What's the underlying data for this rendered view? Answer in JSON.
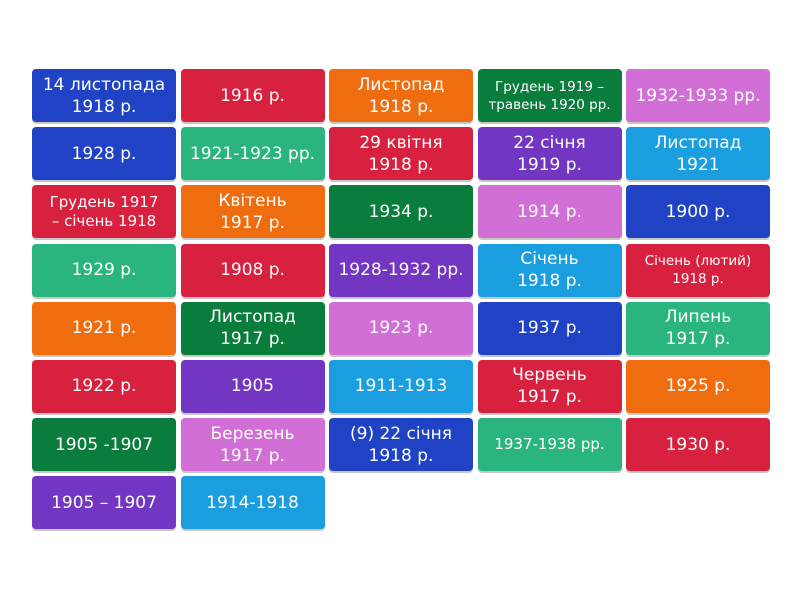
{
  "colors": {
    "blue": "#1f43c4",
    "red": "#d8203f",
    "orange": "#f06d0f",
    "dark_green": "#0a7d3c",
    "pink_purple": "#d16fd6",
    "light_blue": "#1a9ee0",
    "teal": "#2ab57f",
    "violet": "#7336c2"
  },
  "tiles": [
    {
      "label": "14 листопада\n1918 р.",
      "color": "blue"
    },
    {
      "label": "1916 р.",
      "color": "red"
    },
    {
      "label": "Листопад\n1918 р.",
      "color": "orange"
    },
    {
      "label": "Грудень 1919 –\nтравень 1920 рр.",
      "color": "dark_green"
    },
    {
      "label": "1932-1933 рр.",
      "color": "pink_purple"
    },
    {
      "label": "1928 р.",
      "color": "blue"
    },
    {
      "label": "1921-1923 рр.",
      "color": "teal"
    },
    {
      "label": "29 квітня\n1918 р.",
      "color": "red"
    },
    {
      "label": "22 січня\n1919 р.",
      "color": "violet"
    },
    {
      "label": "Листопад\n1921",
      "color": "light_blue"
    },
    {
      "label": "Грудень 1917\n– січень 1918",
      "color": "red"
    },
    {
      "label": "Квітень\n1917 р.",
      "color": "orange"
    },
    {
      "label": "1934 р.",
      "color": "dark_green"
    },
    {
      "label": "1914 р.",
      "color": "pink_purple"
    },
    {
      "label": "1900 р.",
      "color": "blue"
    },
    {
      "label": "1929 р.",
      "color": "teal"
    },
    {
      "label": "1908 р.",
      "color": "red"
    },
    {
      "label": "1928-1932 рр.",
      "color": "violet"
    },
    {
      "label": "Січень\n1918 р.",
      "color": "light_blue"
    },
    {
      "label": "Січень (лютий)\n1918 р.",
      "color": "red"
    },
    {
      "label": "1921 р.",
      "color": "orange"
    },
    {
      "label": "Листопад\n1917 р.",
      "color": "dark_green"
    },
    {
      "label": "1923 р.",
      "color": "pink_purple"
    },
    {
      "label": "1937 р.",
      "color": "blue"
    },
    {
      "label": "Липень\n1917 р.",
      "color": "teal"
    },
    {
      "label": "1922 р.",
      "color": "red"
    },
    {
      "label": "1905",
      "color": "violet"
    },
    {
      "label": "1911-1913",
      "color": "light_blue"
    },
    {
      "label": "Червень\n1917 р.",
      "color": "red"
    },
    {
      "label": "1925 р.",
      "color": "orange"
    },
    {
      "label": "1905 -1907",
      "color": "dark_green"
    },
    {
      "label": "Березень\n1917 р.",
      "color": "pink_purple"
    },
    {
      "label": "(9) 22 січня\n1918 р.",
      "color": "blue"
    },
    {
      "label": "1937-1938 рр.",
      "color": "teal"
    },
    {
      "label": "1930 р.",
      "color": "red"
    },
    {
      "label": "1905 – 1907",
      "color": "violet"
    },
    {
      "label": "1914-1918",
      "color": "light_blue"
    }
  ]
}
